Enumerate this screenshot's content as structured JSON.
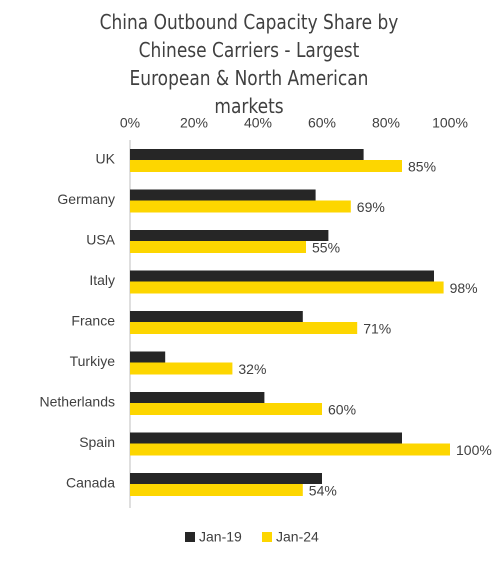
{
  "chart_data": {
    "type": "bar",
    "orientation": "horizontal",
    "title": "China Outbound Capacity Share by Chinese Carriers - Largest European & North American markets",
    "categories": [
      "UK",
      "Germany",
      "USA",
      "Italy",
      "France",
      "Turkiye",
      "Netherlands",
      "Spain",
      "Canada"
    ],
    "series": [
      {
        "name": "Jan-19",
        "color": "#262626",
        "values": [
          73,
          58,
          62,
          95,
          54,
          11,
          42,
          85,
          60
        ]
      },
      {
        "name": "Jan-24",
        "color": "#FDD600",
        "values": [
          85,
          69,
          55,
          98,
          71,
          32,
          60,
          100,
          54
        ],
        "value_labels": [
          "85%",
          "69%",
          "55%",
          "98%",
          "71%",
          "32%",
          "60%",
          "100%",
          "54%"
        ]
      }
    ],
    "xlim": [
      0,
      100
    ],
    "xticks": [
      {
        "value": 0,
        "label": "0%"
      },
      {
        "value": 20,
        "label": "20%"
      },
      {
        "value": 40,
        "label": "40%"
      },
      {
        "value": 60,
        "label": "60%"
      },
      {
        "value": 80,
        "label": "80%"
      },
      {
        "value": 100,
        "label": "100%"
      }
    ],
    "grid": false,
    "legend": "bottom"
  }
}
